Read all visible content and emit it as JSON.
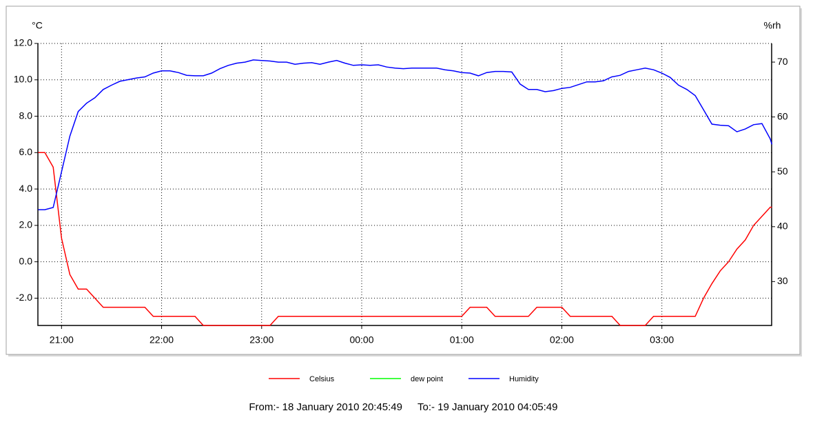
{
  "chart_data": {
    "type": "line",
    "y_axis_label": "°C",
    "y2_axis_label": "%rh",
    "from_label": "From:- 18 January 2010 20:45:49",
    "to_label": "To:- 19 January 2010 04:05:49",
    "xlim": [
      -14.18,
      425.82
    ],
    "xticks": [
      {
        "value": 0,
        "label": "21:00"
      },
      {
        "value": 60,
        "label": "22:00"
      },
      {
        "value": 120,
        "label": "23:00"
      },
      {
        "value": 180,
        "label": "00:00"
      },
      {
        "value": 240,
        "label": "01:00"
      },
      {
        "value": 300,
        "label": "02:00"
      },
      {
        "value": 360,
        "label": "03:00"
      }
    ],
    "ylim": [
      -3.5,
      12
    ],
    "yticks": [
      {
        "value": -2,
        "label": "-2.0"
      },
      {
        "value": 0,
        "label": "0.0"
      },
      {
        "value": 2,
        "label": "2.0"
      },
      {
        "value": 4,
        "label": "4.0"
      },
      {
        "value": 6,
        "label": "6.0"
      },
      {
        "value": 8,
        "label": "8.0"
      },
      {
        "value": 10,
        "label": "10.0"
      },
      {
        "value": 12,
        "label": "12.0"
      }
    ],
    "y2lim": [
      22,
      73.4
    ],
    "y2ticks": [
      30,
      40,
      50,
      60,
      70
    ],
    "grid": true,
    "x": [
      -14,
      -10,
      -5,
      0,
      5,
      10,
      15,
      20,
      25,
      30,
      35,
      40,
      45,
      50,
      55,
      60,
      65,
      70,
      75,
      80,
      85,
      90,
      95,
      100,
      105,
      110,
      115,
      120,
      125,
      130,
      135,
      140,
      145,
      150,
      155,
      160,
      165,
      170,
      175,
      180,
      185,
      190,
      195,
      200,
      205,
      210,
      215,
      220,
      225,
      230,
      235,
      240,
      245,
      250,
      255,
      260,
      265,
      270,
      275,
      280,
      285,
      290,
      295,
      300,
      305,
      310,
      315,
      320,
      325,
      330,
      335,
      340,
      345,
      350,
      355,
      360,
      365,
      370,
      375,
      380,
      385,
      390,
      395,
      400,
      405,
      410,
      415,
      420,
      425,
      426
    ],
    "series": [
      {
        "name": "Celsius",
        "color": "#ff0000",
        "axis": "y",
        "values": [
          6,
          6,
          5.2,
          1.3,
          -0.7,
          -1.5,
          -1.5,
          -2,
          -2.5,
          -2.5,
          -2.5,
          -2.5,
          -2.5,
          -2.5,
          -3,
          -3,
          -3,
          -3,
          -3,
          -3,
          -3.5,
          -3.5,
          -3.5,
          -3.5,
          -3.5,
          -3.5,
          -3.5,
          -3.5,
          -3.5,
          -3,
          -3,
          -3,
          -3,
          -3,
          -3,
          -3,
          -3,
          -3,
          -3,
          -3,
          -3,
          -3,
          -3,
          -3,
          -3,
          -3,
          -3,
          -3,
          -3,
          -3,
          -3,
          -3,
          -2.5,
          -2.5,
          -2.5,
          -3,
          -3,
          -3,
          -3,
          -3,
          -2.5,
          -2.5,
          -2.5,
          -2.5,
          -3,
          -3,
          -3,
          -3,
          -3,
          -3,
          -3.5,
          -3.5,
          -3.5,
          -3.5,
          -3,
          -3,
          -3,
          -3,
          -3,
          -3,
          -2,
          -1.2,
          -0.5,
          0,
          0.7,
          1.2,
          2,
          2.5,
          3,
          3
        ]
      },
      {
        "name": "dew point",
        "color": "#00ff00",
        "axis": "y",
        "values": [
          null,
          null,
          null,
          null,
          null,
          null,
          null,
          null,
          null,
          null,
          null,
          null,
          null,
          null,
          null,
          null,
          null,
          null,
          null,
          null,
          null,
          null,
          null,
          null,
          null,
          null,
          null,
          null,
          null,
          null,
          null,
          null,
          null,
          null,
          null,
          null,
          null,
          null,
          null,
          null,
          null,
          null,
          null,
          null,
          null,
          null,
          null,
          null,
          null,
          null,
          null,
          null,
          null,
          null,
          null,
          null,
          null,
          null,
          null,
          null,
          null,
          null,
          null,
          null,
          null,
          null,
          null,
          null,
          null,
          null,
          null,
          null,
          null,
          null,
          null,
          null,
          null,
          null,
          null,
          null,
          null,
          null,
          null,
          null,
          null,
          null,
          null,
          null,
          null,
          null
        ]
      },
      {
        "name": "Humidity",
        "color": "#0000ff",
        "axis": "y2",
        "values": [
          43.1,
          43.1,
          43.5,
          50,
          56.5,
          61,
          62.5,
          63.5,
          65,
          65.8,
          66.5,
          66.8,
          67.1,
          67.3,
          68,
          68.4,
          68.4,
          68.1,
          67.6,
          67.5,
          67.5,
          68,
          68.8,
          69.4,
          69.8,
          70,
          70.4,
          70.3,
          70.2,
          70,
          70,
          69.6,
          69.8,
          69.9,
          69.6,
          70,
          70.3,
          69.8,
          69.4,
          69.5,
          69.4,
          69.5,
          69.1,
          68.9,
          68.8,
          68.9,
          68.9,
          68.9,
          68.9,
          68.6,
          68.4,
          68.1,
          68,
          67.5,
          68.1,
          68.3,
          68.3,
          68.2,
          66,
          65,
          65,
          64.6,
          64.8,
          65.2,
          65.4,
          65.9,
          66.4,
          66.4,
          66.6,
          67.3,
          67.6,
          68.3,
          68.6,
          68.9,
          68.6,
          68,
          67.2,
          65.8,
          65,
          63.9,
          61.3,
          58.7,
          58.5,
          58.4,
          57.3,
          57.8,
          58.6,
          58.8,
          56,
          55
        ]
      }
    ]
  }
}
